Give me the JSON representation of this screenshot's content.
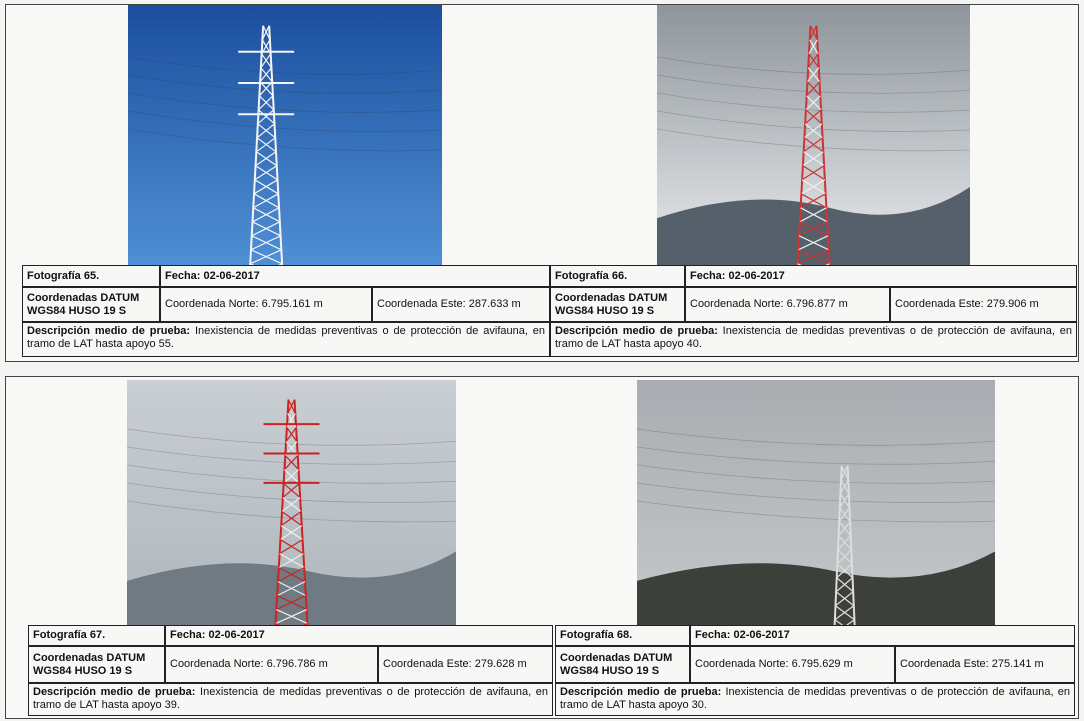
{
  "panels": [
    {
      "photo": "Fotografía 65.",
      "date": "Fecha: 02-06-2017",
      "datum": "Coordenadas DATUM WGS84 HUSO 19 S",
      "north": "Coordenada Norte: 6.795.161 m",
      "east": "Coordenada Este: 287.633 m",
      "desc_label": "Descripción medio de prueba:",
      "desc": "Inexistencia de medidas preventivas o de protección de avifauna, en tramo de LAT hasta apoyo 55."
    },
    {
      "photo": "Fotografía 66.",
      "date": "Fecha: 02-06-2017",
      "datum": "Coordenadas DATUM WGS84 HUSO 19 S",
      "north": "Coordenada Norte: 6.796.877 m",
      "east": "Coordenada Este: 279.906 m",
      "desc_label": "Descripción medio de prueba:",
      "desc": "Inexistencia de medidas preventivas o de protección de avifauna, en tramo de LAT hasta apoyo 40."
    },
    {
      "photo": "Fotografía 67.",
      "date": "Fecha: 02-06-2017",
      "datum": "Coordenadas DATUM WGS84 HUSO 19 S",
      "north": "Coordenada Norte: 6.796.786 m",
      "east": "Coordenada Este: 279.628 m",
      "desc_label": "Descripción medio de prueba:",
      "desc": "Inexistencia de medidas preventivas o de protección de avifauna, en tramo de LAT hasta apoyo 39."
    },
    {
      "photo": "Fotografía 68.",
      "date": "Fecha: 02-06-2017",
      "datum": "Coordenadas DATUM WGS84 HUSO 19 S",
      "north": "Coordenada Norte: 6.795.629 m",
      "east": "Coordenada Este: 275.141 m",
      "desc_label": "Descripción medio de prueba:",
      "desc": "Inexistencia de medidas preventivas o de protección de avifauna, en tramo de LAT hasta apoyo 30."
    }
  ]
}
